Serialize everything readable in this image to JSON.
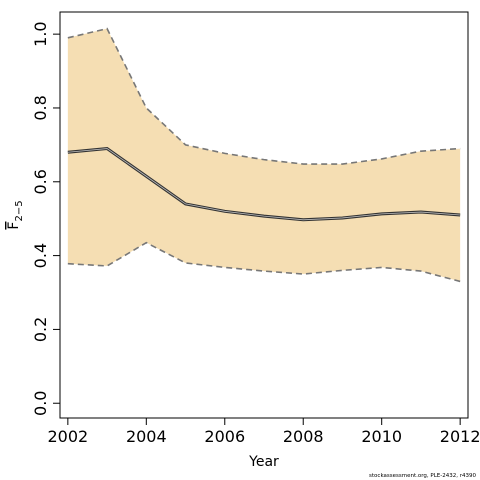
{
  "chart_data": {
    "type": "line",
    "xlabel": "Year",
    "ylabel": "F",
    "ylabel_subscript": "2−5",
    "xlim": [
      2001.8,
      2012.2
    ],
    "ylim": [
      -0.04,
      1.06
    ],
    "x_ticks": [
      2002,
      2004,
      2006,
      2008,
      2010,
      2012
    ],
    "x_tick_labels": [
      "2002",
      "2004",
      "2006",
      "2008",
      "2010",
      "2012"
    ],
    "y_ticks": [
      0.0,
      0.2,
      0.4,
      0.6,
      0.8,
      1.0
    ],
    "y_tick_labels": [
      "0.0",
      "0.2",
      "0.4",
      "0.6",
      "0.8",
      "1.0"
    ],
    "grid": false,
    "x": [
      2002,
      2003,
      2004,
      2005,
      2006,
      2007,
      2008,
      2009,
      2010,
      2011,
      2012
    ],
    "estimate": [
      0.68,
      0.69,
      0.615,
      0.54,
      0.52,
      0.507,
      0.497,
      0.502,
      0.513,
      0.518,
      0.51
    ],
    "upper": [
      0.99,
      1.015,
      0.8,
      0.7,
      0.677,
      0.66,
      0.648,
      0.648,
      0.662,
      0.683,
      0.69
    ],
    "lower": [
      0.378,
      0.372,
      0.435,
      0.38,
      0.368,
      0.358,
      0.35,
      0.36,
      0.368,
      0.358,
      0.33
    ],
    "colors": {
      "band_fill": "#f5deb3",
      "bound_line": "#777777",
      "estimate_dark": "#333333",
      "estimate_light": "#bbbbbb",
      "axis": "#000000"
    }
  },
  "footnote": "stockassessment.org, PLE-2432, r4390"
}
